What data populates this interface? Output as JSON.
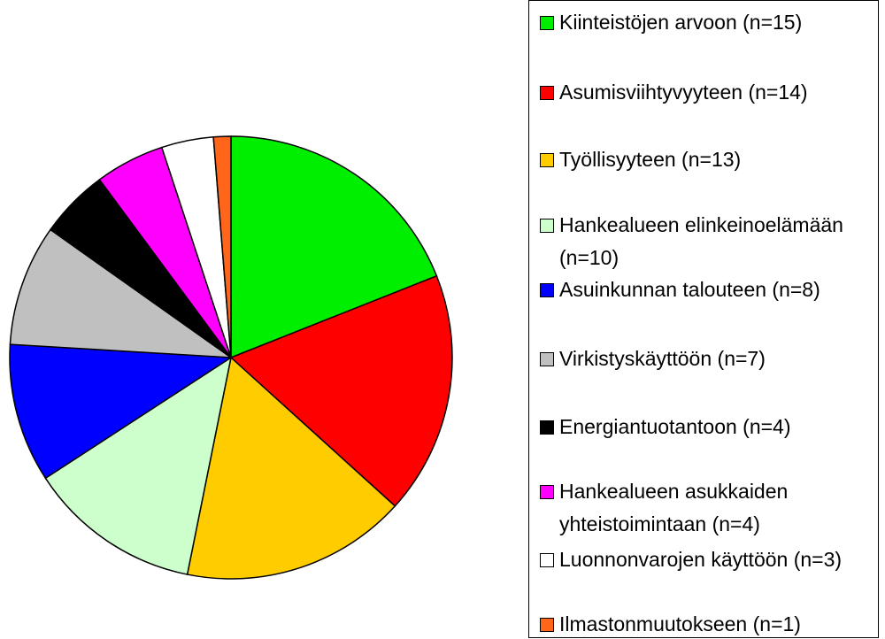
{
  "chart_data": {
    "type": "pie",
    "categories": [
      "Kiinteistöjen arvoon (n=15)",
      "Asumisviihtyvyyteen (n=14)",
      "Työllisyyteen (n=13)",
      "Hankealueen elinkeinoelämään (n=10)",
      "Asuinkunnan talouteen (n=8)",
      "Virkistyskäyttöön (n=7)",
      "Energiantuotantoon (n=4)",
      "Hankealueen asukkaiden yhteistoimintaan (n=4)",
      "Luonnonvarojen käyttöön (n=3)",
      "Ilmastonmuutokseen (n=1)"
    ],
    "values": [
      15,
      14,
      13,
      10,
      8,
      7,
      4,
      4,
      3,
      1
    ],
    "colors": [
      "#00ee00",
      "#ff0000",
      "#ffcc00",
      "#ccffcc",
      "#0000ff",
      "#c0c0c0",
      "#000000",
      "#ff00ff",
      "#ffffff",
      "#ff6619"
    ],
    "legend": "right"
  }
}
